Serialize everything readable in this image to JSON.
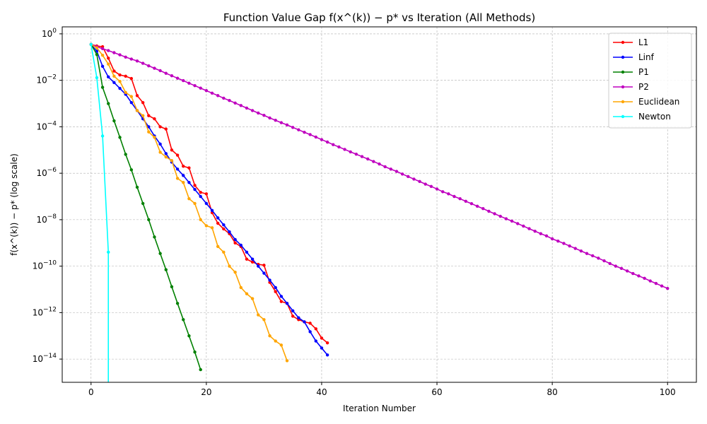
{
  "chart_data": {
    "type": "line",
    "title": "Function Value Gap f(x^(k)) − p* vs Iteration (All Methods)",
    "xlabel": "Iteration Number",
    "ylabel": "f(x^(k)) − p* (log scale)",
    "xlim": [
      -5,
      105
    ],
    "ylim": [
      1e-15,
      2
    ],
    "yscale": "log",
    "grid": true,
    "legend_position": "top-right",
    "x_ticks": [
      0,
      20,
      40,
      60,
      80,
      100
    ],
    "y_ticks": [
      1,
      0.01,
      0.0001,
      1e-06,
      1e-08,
      1e-10,
      1e-12,
      1e-14
    ],
    "x_tick_labels": [
      "0",
      "20",
      "40",
      "60",
      "80",
      "100"
    ],
    "y_tick_labels": [
      {
        "base": "10",
        "exp": "0"
      },
      {
        "base": "10",
        "exp": "−2"
      },
      {
        "base": "10",
        "exp": "−4"
      },
      {
        "base": "10",
        "exp": "−6"
      },
      {
        "base": "10",
        "exp": "−8"
      },
      {
        "base": "10",
        "exp": "−10"
      },
      {
        "base": "10",
        "exp": "−12"
      },
      {
        "base": "10",
        "exp": "−14"
      }
    ],
    "series": [
      {
        "name": "L1",
        "color": "#ff0000",
        "x": [
          0,
          1,
          2,
          3,
          4,
          5,
          6,
          7,
          8,
          9,
          10,
          11,
          12,
          13,
          14,
          15,
          16,
          17,
          18,
          19,
          20,
          21,
          22,
          23,
          24,
          25,
          26,
          27,
          28,
          29,
          30,
          31,
          32,
          33,
          34,
          35,
          36,
          37,
          38,
          39,
          40,
          41
        ],
        "y": [
          0.35,
          0.3,
          0.28,
          0.09,
          0.025,
          0.017,
          0.015,
          0.012,
          0.0022,
          0.0011,
          0.0003,
          0.00022,
          0.0001,
          8e-05,
          1e-05,
          6e-06,
          2e-06,
          1.7e-06,
          3e-07,
          1.5e-07,
          1.3e-07,
          2e-08,
          7e-09,
          4e-09,
          2.5e-09,
          1e-09,
          7e-10,
          2e-10,
          1.5e-10,
          1.2e-10,
          1.1e-10,
          2e-11,
          8e-12,
          3e-12,
          2.5e-12,
          7e-13,
          5e-13,
          4e-13,
          3.5e-13,
          2e-13,
          8e-14,
          5e-14
        ]
      },
      {
        "name": "Linf",
        "color": "#0000ff",
        "x": [
          0,
          1,
          2,
          3,
          4,
          5,
          6,
          7,
          8,
          9,
          10,
          11,
          12,
          13,
          14,
          15,
          16,
          17,
          18,
          19,
          20,
          21,
          22,
          23,
          24,
          25,
          26,
          27,
          28,
          29,
          30,
          31,
          32,
          33,
          34,
          35,
          36,
          37,
          38,
          39,
          40,
          41
        ],
        "y": [
          0.35,
          0.18,
          0.04,
          0.014,
          0.008,
          0.0045,
          0.0025,
          0.0011,
          0.0005,
          0.00022,
          0.0001,
          4e-05,
          1.8e-05,
          7e-06,
          3e-06,
          1.5e-06,
          8e-07,
          4e-07,
          2e-07,
          1e-07,
          5e-08,
          2.5e-08,
          1.2e-08,
          6e-09,
          3e-09,
          1.4e-09,
          8e-10,
          4e-10,
          2e-10,
          1e-10,
          5e-11,
          2.5e-11,
          1.2e-11,
          5e-12,
          2.5e-12,
          1.2e-12,
          6e-13,
          4e-13,
          1.5e-13,
          6e-14,
          3e-14,
          1.5e-14
        ]
      },
      {
        "name": "P1",
        "color": "#008000",
        "x": [
          0,
          1,
          2,
          3,
          4,
          5,
          6,
          7,
          8,
          9,
          10,
          11,
          12,
          13,
          14,
          15,
          16,
          17,
          18,
          19
        ],
        "y": [
          0.35,
          0.13,
          0.005,
          0.001,
          0.00018,
          3.5e-05,
          6.5e-06,
          1.4e-06,
          2.5e-07,
          5e-08,
          1e-08,
          1.8e-09,
          3.5e-10,
          7e-11,
          1.3e-11,
          2.5e-12,
          5e-13,
          1e-13,
          2e-14,
          3.5e-15
        ]
      },
      {
        "name": "P2",
        "color": "#bf00bf",
        "x": [
          0,
          1,
          2,
          3,
          4,
          5,
          6,
          7,
          8,
          9,
          10,
          11,
          12,
          13,
          14,
          15,
          16,
          17,
          18,
          19,
          20,
          21,
          22,
          23,
          24,
          25,
          26,
          27,
          28,
          29,
          30,
          31,
          32,
          33,
          34,
          35,
          36,
          37,
          38,
          39,
          40,
          41,
          42,
          43,
          44,
          45,
          46,
          47,
          48,
          49,
          50,
          51,
          52,
          53,
          54,
          55,
          56,
          57,
          58,
          59,
          60,
          61,
          62,
          63,
          64,
          65,
          66,
          67,
          68,
          69,
          70,
          71,
          72,
          73,
          74,
          75,
          76,
          77,
          78,
          79,
          80,
          81,
          82,
          83,
          84,
          85,
          86,
          87,
          88,
          89,
          90,
          91,
          92,
          93,
          94,
          95,
          96,
          97,
          98,
          99,
          100
        ],
        "y": [
          0.35,
          0.28,
          0.23,
          0.19,
          0.155,
          0.125,
          0.1,
          0.082,
          0.068,
          0.054,
          0.042,
          0.033,
          0.026,
          0.02,
          0.0157,
          0.0123,
          0.0097,
          0.0075,
          0.0059,
          0.0046,
          0.0036,
          0.0028,
          0.0022,
          0.0017,
          0.00135,
          0.00105,
          0.00082,
          0.00064,
          0.0005,
          0.00039,
          0.00031,
          0.00024,
          0.00019,
          0.00015,
          0.00012,
          9.4e-05,
          7.4e-05,
          5.8e-05,
          4.6e-05,
          3.6e-05,
          2.8e-05,
          2.2e-05,
          1.7e-05,
          1.35e-05,
          1.06e-05,
          8.3e-06,
          6.6e-06,
          5.2e-06,
          4.1e-06,
          3.2e-06,
          2.5e-06,
          1.9e-06,
          1.5e-06,
          1.2e-06,
          9.2e-07,
          7.2e-07,
          5.6e-07,
          4.4e-07,
          3.4e-07,
          2.7e-07,
          2.1e-07,
          1.6e-07,
          1.3e-07,
          1e-07,
          8e-08,
          6.2e-08,
          4.9e-08,
          3.8e-08,
          3e-08,
          2.3e-08,
          1.8e-08,
          1.4e-08,
          1.1e-08,
          8.7e-09,
          6.8e-09,
          5.3e-09,
          4.1e-09,
          3.2e-09,
          2.5e-09,
          2e-09,
          1.5e-09,
          1.2e-09,
          9.5e-10,
          7.4e-10,
          5.8e-10,
          4.5e-10,
          3.5e-10,
          2.8e-10,
          2.2e-10,
          1.7e-10,
          1.3e-10,
          1e-10,
          8e-11,
          6.2e-11,
          4.8e-11,
          3.8e-11,
          3e-11,
          2.3e-11,
          1.8e-11,
          1.4e-11,
          1.1e-11
        ]
      },
      {
        "name": "Euclidean",
        "color": "#ffa500",
        "x": [
          0,
          1,
          2,
          3,
          4,
          5,
          6,
          7,
          8,
          9,
          10,
          11,
          12,
          13,
          14,
          15,
          16,
          17,
          18,
          19,
          20,
          21,
          22,
          23,
          24,
          25,
          26,
          27,
          28,
          29,
          30,
          31,
          32,
          33,
          34
        ],
        "y": [
          0.35,
          0.25,
          0.12,
          0.05,
          0.015,
          0.009,
          0.003,
          0.002,
          0.0005,
          0.0003,
          6e-05,
          3.5e-05,
          8e-06,
          5e-06,
          3.5e-06,
          6e-07,
          4e-07,
          8e-08,
          5e-08,
          1e-08,
          5.5e-09,
          4.5e-09,
          7e-10,
          4e-10,
          1e-10,
          5.5e-11,
          1.2e-11,
          6.5e-12,
          4e-12,
          8e-13,
          5e-13,
          1e-13,
          6e-14,
          4e-14,
          8.5e-15
        ]
      },
      {
        "name": "Newton",
        "color": "#00ffff",
        "x": [
          0,
          1,
          2,
          3,
          3
        ],
        "y": [
          0.35,
          0.013,
          4e-05,
          4e-10,
          1e-15
        ]
      }
    ]
  }
}
